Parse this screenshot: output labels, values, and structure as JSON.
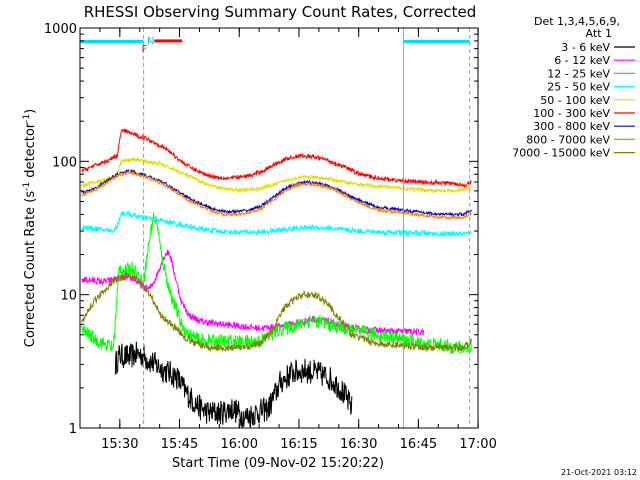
{
  "chart_data": {
    "type": "line",
    "title": "RHESSI Observing Summary Count Rates, Corrected",
    "ylabel_parts": [
      "Corrected Count Rate (s",
      "-1",
      " detector",
      "-1",
      ")"
    ],
    "xlabel": "Start Time (09-Nov-02 15:20:22)",
    "timestamp": "21-Oct-2021 03:12",
    "y_scale": "log",
    "ylim": [
      1,
      1000
    ],
    "xlim_minutes": [
      -0.37,
      99.6
    ],
    "grid": false,
    "legend_position": "right",
    "legend_header": [
      "Det 1,3,4,5,6,9,",
      "Att 1"
    ],
    "y_ticks": [
      {
        "label": "1",
        "value": 1
      },
      {
        "label": "10",
        "value": 10
      },
      {
        "label": "100",
        "value": 100
      },
      {
        "label": "1000",
        "value": 1000
      }
    ],
    "x_ticks": [
      {
        "label": "15:30",
        "minutes": 9.63
      },
      {
        "label": "15:45",
        "minutes": 24.63
      },
      {
        "label": "16:00",
        "minutes": 39.63
      },
      {
        "label": "16:15",
        "minutes": 54.63
      },
      {
        "label": "16:30",
        "minutes": 69.63
      },
      {
        "label": "16:45",
        "minutes": 84.63
      },
      {
        "label": "17:00",
        "minutes": 99.63
      }
    ],
    "annotations": [
      {
        "label": "N",
        "color": "#00c8ff",
        "minutes": 17.4
      },
      {
        "label": "F",
        "color": "#ff0000",
        "minutes": 15.8
      }
    ],
    "markers": {
      "cyan_solid": [
        -0.37,
        80.9
      ],
      "cyan_dashed": [
        15.6,
        97.5
      ],
      "cyan_bar_color": "#00dcff",
      "cyan_bar_spans": [
        [
          -0.37,
          15.6
        ],
        [
          80.9,
          97.5
        ]
      ],
      "flare_bar": {
        "color": "#ff0000",
        "span": [
          18.3,
          25.3
        ],
        "value": 800
      }
    },
    "series": [
      {
        "name": "3 - 6 keV",
        "color": "#000000",
        "noise": 0.22,
        "x": [
          8.5,
          9.5,
          12,
          14,
          15.5,
          17,
          20,
          22,
          24,
          26,
          28,
          30,
          32,
          35,
          38,
          41,
          44,
          47,
          50,
          53,
          56,
          59,
          62,
          65,
          68
        ],
        "y": [
          3,
          3.5,
          3.4,
          3.6,
          3.5,
          3.2,
          2.8,
          2.6,
          2.4,
          1.9,
          1.6,
          1.4,
          1.3,
          1.3,
          1.4,
          1.2,
          1.3,
          1.4,
          2.2,
          2.6,
          2.7,
          2.6,
          2.4,
          2,
          1.4
        ]
      },
      {
        "name": "6 - 12 keV",
        "color": "#ff00ff",
        "noise": 0.06,
        "x": [
          0,
          6,
          10,
          13,
          15.5,
          17,
          18.5,
          20,
          21,
          22,
          23,
          24,
          25,
          27,
          30,
          35,
          40,
          45,
          50,
          55,
          58,
          62,
          66,
          70,
          74,
          78,
          82,
          86
        ],
        "y": [
          13,
          12.5,
          13.5,
          13.2,
          11.5,
          11,
          13,
          17,
          20,
          21,
          16,
          12,
          9,
          7,
          6.3,
          6,
          5.8,
          5.6,
          5.8,
          6.2,
          6.6,
          6.3,
          5.7,
          5.5,
          5.4,
          5.3,
          5.3,
          5.2
        ]
      },
      {
        "name": "12 - 25 keV",
        "color": "#00ff00",
        "noise": 0.12,
        "x": [
          0,
          4,
          8,
          9.5,
          11,
          13,
          15.5,
          17,
          18,
          19,
          20,
          21,
          22,
          23,
          24,
          25,
          27,
          30,
          35,
          40,
          45,
          50,
          55,
          58,
          62,
          66,
          70,
          74,
          78,
          82,
          86,
          90,
          95,
          98
        ],
        "y": [
          5.5,
          4.5,
          4,
          16,
          15,
          16,
          12,
          25,
          38,
          35,
          20,
          15,
          11,
          9,
          7.5,
          6,
          5,
          4.5,
          4.5,
          4.4,
          4.5,
          5.5,
          6,
          6.5,
          6,
          5.5,
          5.3,
          5,
          4.8,
          4.5,
          4.3,
          4.2,
          4,
          4
        ]
      },
      {
        "name": "25 - 50 keV",
        "color": "#00ffff",
        "noise": 0.045,
        "x": [
          0,
          4,
          8,
          9,
          10,
          12,
          15,
          18,
          22,
          26,
          30,
          34,
          38,
          42,
          46,
          50,
          54,
          58,
          62,
          66,
          70,
          74,
          78,
          82,
          86,
          90,
          94,
          98
        ],
        "y": [
          32,
          31,
          30,
          33,
          41,
          40,
          38,
          37,
          35,
          33,
          31,
          30,
          29.5,
          29.5,
          29.5,
          30.5,
          31.5,
          32,
          31.5,
          30.5,
          30,
          29.5,
          29.5,
          29,
          29,
          28.5,
          28.5,
          28.5
        ]
      },
      {
        "name": "50 - 100 keV",
        "color": "#e0e000",
        "noise": 0.03,
        "x": [
          0,
          3,
          6,
          9,
          10,
          13,
          16,
          20,
          24,
          28,
          32,
          36,
          40,
          44,
          48,
          52,
          55,
          58,
          62,
          66,
          70,
          74,
          78,
          82,
          86,
          90,
          94,
          97,
          98
        ],
        "y": [
          65,
          70,
          73,
          80,
          100,
          104,
          100,
          95,
          85,
          75,
          66,
          62,
          61,
          62,
          66,
          73,
          76,
          76,
          74,
          70,
          67,
          65,
          64,
          62,
          61,
          60,
          60,
          62,
          64
        ]
      },
      {
        "name": "100 - 300 keV",
        "color": "#ff0000",
        "noise": 0.035,
        "x": [
          0,
          3,
          6,
          9,
          10,
          12,
          14,
          16,
          19,
          22,
          25,
          28,
          31,
          34,
          37,
          40,
          43,
          46,
          49,
          52,
          55,
          58,
          61,
          64,
          67,
          70,
          73,
          76,
          79,
          82,
          85,
          88,
          91,
          94,
          96,
          98
        ],
        "y": [
          85,
          92,
          100,
          110,
          170,
          165,
          155,
          150,
          135,
          120,
          100,
          88,
          80,
          76,
          75,
          76,
          79,
          86,
          97,
          106,
          110,
          108,
          104,
          96,
          88,
          80,
          76,
          74,
          72,
          71,
          70,
          69,
          69,
          68,
          66,
          70
        ]
      },
      {
        "name": "300 - 800 keV",
        "color": "#0000cc",
        "noise": 0.025,
        "x": [
          0,
          3,
          6,
          9,
          12,
          15,
          18,
          21,
          24,
          27,
          30,
          33,
          36,
          39,
          42,
          45,
          48,
          51,
          54,
          57,
          60,
          63,
          66,
          69,
          72,
          75,
          78,
          81,
          84,
          87,
          90,
          93,
          96,
          98
        ],
        "y": [
          58,
          62,
          70,
          80,
          85,
          80,
          75,
          68,
          60,
          53,
          48,
          44,
          42,
          42,
          43,
          46,
          53,
          62,
          68,
          70,
          68,
          64,
          58,
          52,
          48,
          45,
          44,
          43,
          42,
          41,
          40,
          40,
          40,
          43
        ]
      },
      {
        "name": "800 - 7000 keV",
        "color": "#ff8000",
        "noise": 0.025,
        "x": [
          0,
          3,
          6,
          9,
          12,
          15,
          18,
          21,
          24,
          27,
          30,
          33,
          36,
          39,
          42,
          45,
          48,
          51,
          54,
          57,
          60,
          63,
          66,
          69,
          72,
          75,
          78,
          81,
          84,
          87,
          90,
          93,
          96,
          98
        ],
        "y": [
          56,
          60,
          68,
          78,
          83,
          78,
          73,
          66,
          58,
          51,
          46,
          42,
          40,
          40,
          41,
          44,
          51,
          60,
          66,
          68,
          66,
          62,
          56,
          50,
          46,
          43,
          42,
          41,
          40,
          39,
          38,
          38,
          38,
          41
        ]
      },
      {
        "name": "7000 - 15000 keV",
        "color": "#808000",
        "noise": 0.06,
        "x": [
          0,
          2,
          4,
          6,
          8,
          10,
          12,
          14,
          16,
          18,
          20,
          22,
          24,
          26,
          28,
          30,
          32,
          34,
          36,
          40,
          45,
          48,
          51,
          54,
          56,
          58,
          60,
          62,
          64,
          66,
          68,
          72,
          76,
          80,
          84,
          88,
          92,
          96,
          98
        ],
        "y": [
          6,
          8,
          9.5,
          11,
          12.5,
          13.5,
          14,
          13,
          11,
          9,
          7,
          6.2,
          5.5,
          4.8,
          4.4,
          4.2,
          4,
          4,
          4,
          4,
          4.3,
          5.5,
          8,
          9.5,
          10,
          10,
          9.5,
          8.5,
          7,
          6,
          5,
          4.5,
          4.2,
          4.2,
          4.1,
          4,
          4,
          4,
          4.5
        ]
      }
    ]
  }
}
